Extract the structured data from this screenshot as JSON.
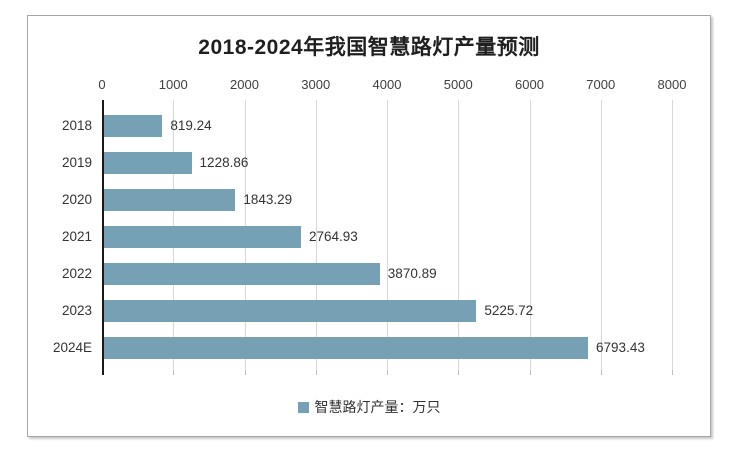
{
  "chart_data": {
    "type": "bar",
    "orientation": "horizontal",
    "title": "2018-2024年我国智慧路灯产量预测",
    "categories": [
      "2018",
      "2019",
      "2020",
      "2021",
      "2022",
      "2023",
      "2024E"
    ],
    "values": [
      819.24,
      1228.86,
      1843.29,
      2764.93,
      3870.89,
      5225.72,
      6793.43
    ],
    "value_labels": [
      "819.24",
      "1228.86",
      "1843.29",
      "2764.93",
      "3870.89",
      "5225.72",
      "6793.43"
    ],
    "xlim": [
      0,
      8000
    ],
    "x_ticks": [
      0,
      1000,
      2000,
      3000,
      4000,
      5000,
      6000,
      7000,
      8000
    ],
    "x_tick_labels": [
      "0",
      "1000",
      "2000",
      "3000",
      "4000",
      "5000",
      "6000",
      "7000",
      "8000"
    ],
    "x_axis_position": "top",
    "grid": true,
    "legend_position": "bottom",
    "legend": [
      {
        "label": "智慧路灯产量：万只",
        "marker": "square"
      }
    ],
    "colors": {
      "bar": "#76a1b5",
      "grid": "#d9d9d9",
      "axis_line": "#1a1a1a",
      "tick": "#bfbfbf",
      "text": "#404040",
      "value_text": "#333333",
      "title": "#1f1f1f",
      "frame_border": "#a6a6a6"
    }
  }
}
